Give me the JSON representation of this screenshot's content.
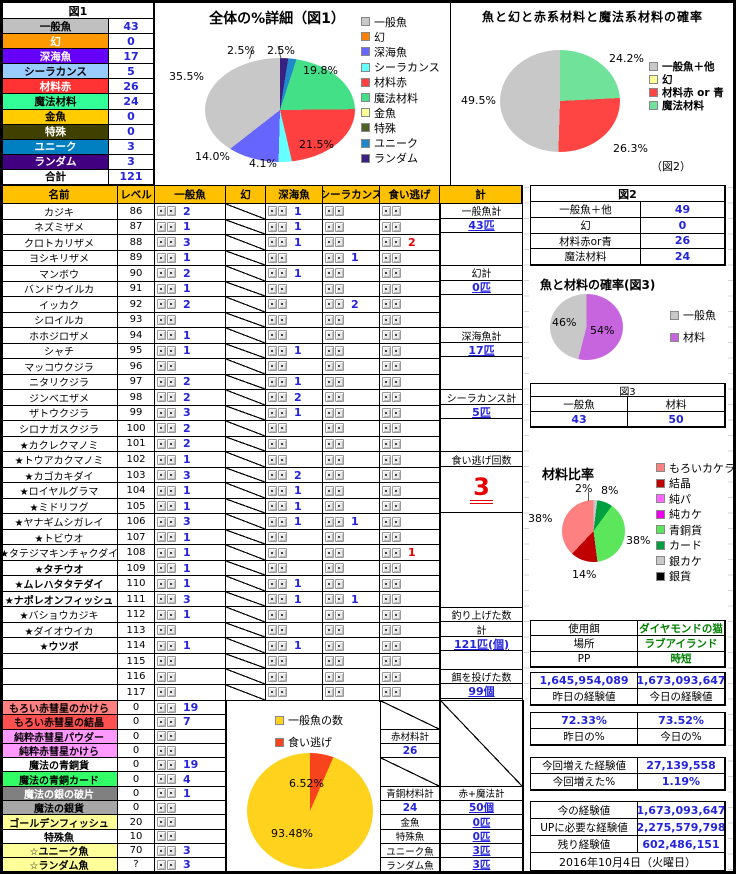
{
  "fig1_table": {
    "title": "図1",
    "rows": [
      [
        "一般魚",
        "43",
        "#C0C0C0",
        "#000000"
      ],
      [
        "幻",
        "0",
        "#FF9900",
        "#FFFFFF"
      ],
      [
        "深海魚",
        "17",
        "#6600FF",
        "#FFFFFF"
      ],
      [
        "シーラカンス",
        "5",
        "#99CCFF",
        "#000000"
      ],
      [
        "材料赤",
        "26",
        "#FF3333",
        "#FFFFFF"
      ],
      [
        "魔法材料",
        "24",
        "#33FF99",
        "#000000"
      ],
      [
        "金魚",
        "0",
        "#FFCC00",
        "#000000"
      ],
      [
        "特殊",
        "0",
        "#404000",
        "#FFFFFF"
      ],
      [
        "ユニーク",
        "3",
        "#0080C0",
        "#FFFFFF"
      ],
      [
        "ランダム",
        "3",
        "#400080",
        "#FFFFFF"
      ]
    ],
    "total_label": "合計",
    "total_value": "121"
  },
  "chart_data": [
    {
      "type": "pie",
      "title": "全体の%詳細（図1）",
      "legend_position": "right",
      "slices": [
        {
          "label": "一般魚",
          "color": "#C8C8C8",
          "value": 35.5,
          "pct": "35.5%"
        },
        {
          "label": "幻",
          "color": "#FF8000",
          "value": 0
        },
        {
          "label": "深海魚",
          "color": "#6666FF",
          "value": 14.0,
          "pct": "14.0%"
        },
        {
          "label": "シーラカンス",
          "color": "#66FFFF",
          "value": 4.1,
          "pct": "4.1%"
        },
        {
          "label": "材料赤",
          "color": "#FF4040",
          "value": 21.5,
          "pct": "21.5%"
        },
        {
          "label": "魔法材料",
          "color": "#44E088",
          "value": 19.8,
          "pct": "19.8%"
        },
        {
          "label": "金魚",
          "color": "#FFFF99",
          "value": 0
        },
        {
          "label": "特殊",
          "color": "#4F6228",
          "value": 0
        },
        {
          "label": "ユニーク",
          "color": "#2288CC",
          "value": 2.5,
          "pct": "2.5%"
        },
        {
          "label": "ランダム",
          "color": "#3A2080",
          "value": 2.5,
          "pct": "2.5%"
        }
      ]
    },
    {
      "type": "pie",
      "title": "魚と幻と赤系材料と魔法系材料の確率",
      "caption": "（図2）",
      "legend_position": "right",
      "slices": [
        {
          "label": "一般魚＋他",
          "color": "#C8C8C8",
          "value": 49.5,
          "pct": "49.5%"
        },
        {
          "label": "幻",
          "color": "#FFFF99",
          "value": 0
        },
        {
          "label": "材料赤 or 青",
          "color": "#FF4444",
          "value": 26.3,
          "pct": "26.3%"
        },
        {
          "label": "魔法材料",
          "color": "#70E29A",
          "value": 24.2,
          "pct": "24.2%"
        }
      ]
    },
    {
      "type": "pie",
      "title": "魚と材料の確率(図3)",
      "legend_position": "right",
      "slices": [
        {
          "label": "一般魚",
          "color": "#C8C8C8",
          "value": 46,
          "pct": "46%"
        },
        {
          "label": "材料",
          "color": "#C665DD",
          "value": 54,
          "pct": "54%"
        }
      ]
    },
    {
      "type": "pie",
      "title": "材料比率",
      "legend_position": "right",
      "slices": [
        {
          "label": "もろいカケラ",
          "color": "#FF8080",
          "value": 38,
          "pct": "38%"
        },
        {
          "label": "結晶",
          "color": "#C00000",
          "value": 14,
          "pct": "14%"
        },
        {
          "label": "純パ",
          "color": "#FF66FF",
          "value": 0
        },
        {
          "label": "純カケ",
          "color": "#EE00EE",
          "value": 0
        },
        {
          "label": "青銅貨",
          "color": "#5CE65C",
          "value": 38,
          "pct": "38%"
        },
        {
          "label": "カード",
          "color": "#00A040",
          "value": 8,
          "pct": "8%"
        },
        {
          "label": "銀カケ",
          "color": "#C8C8C8",
          "value": 2,
          "pct": "2%"
        },
        {
          "label": "銀貨",
          "color": "#000000",
          "value": 0
        }
      ]
    },
    {
      "type": "pie",
      "title": "",
      "legend_position": "top",
      "slices": [
        {
          "label": "一般魚の数",
          "color": "#FFD21E",
          "value": 93.48,
          "pct": "93.48%"
        },
        {
          "label": "食い逃げ",
          "color": "#F8441C",
          "value": 6.52,
          "pct": "6.52%"
        }
      ]
    }
  ],
  "main_table": {
    "headers": [
      "名前",
      "レベル",
      "一般魚",
      "幻",
      "深海魚",
      "シーラカンス",
      "食い逃げ",
      "計"
    ],
    "rows": [
      [
        86,
        "カジキ",
        0,
        "2",
        "1",
        "",
        ""
      ],
      [
        87,
        "ネズミザメ",
        0,
        "1",
        "1",
        "",
        ""
      ],
      [
        88,
        "クロトカリザメ",
        0,
        "3",
        "1",
        "",
        "2"
      ],
      [
        89,
        "ヨシキリザメ",
        0,
        "1",
        "",
        "1",
        ""
      ],
      [
        90,
        "マンボウ",
        0,
        "2",
        "1",
        "",
        ""
      ],
      [
        91,
        "バンドウイルカ",
        0,
        "1",
        "",
        "",
        ""
      ],
      [
        92,
        "イッカク",
        0,
        "2",
        "",
        "2",
        ""
      ],
      [
        93,
        "シロイルカ",
        0,
        "",
        "",
        "",
        ""
      ],
      [
        94,
        "ホホジロザメ",
        0,
        "1",
        "",
        "",
        ""
      ],
      [
        95,
        "シャチ",
        0,
        "1",
        "1",
        "",
        ""
      ],
      [
        96,
        "マッコウクジラ",
        0,
        "",
        "",
        "",
        ""
      ],
      [
        97,
        "ニタリクジラ",
        0,
        "2",
        "1",
        "",
        ""
      ],
      [
        98,
        "ジンベエザメ",
        0,
        "2",
        "2",
        "",
        ""
      ],
      [
        99,
        "ザトウクジラ",
        0,
        "3",
        "1",
        "",
        ""
      ],
      [
        100,
        "シロナガスクジラ",
        0,
        "2",
        "",
        "",
        ""
      ],
      [
        101,
        "★カクレクマノミ",
        0,
        "2",
        "",
        "",
        ""
      ],
      [
        102,
        "★トウアカクマノミ",
        0,
        "1",
        "",
        "",
        ""
      ],
      [
        103,
        "★カゴカキダイ",
        0,
        "3",
        "2",
        "",
        ""
      ],
      [
        104,
        "★ロイヤルグラマ",
        0,
        "1",
        "1",
        "",
        ""
      ],
      [
        105,
        "★ミドリフグ",
        0,
        "1",
        "1",
        "",
        ""
      ],
      [
        106,
        "★ヤナギムシガレイ",
        0,
        "3",
        "1",
        "1",
        ""
      ],
      [
        107,
        "★トビウオ",
        0,
        "1",
        "",
        "",
        ""
      ],
      [
        108,
        "★タテジマキンチャクダイ",
        0,
        "1",
        "",
        "",
        "1"
      ],
      [
        109,
        "★タチウオ",
        1,
        "1",
        "",
        "",
        ""
      ],
      [
        110,
        "★ムレハタタテダイ",
        1,
        "1",
        "1",
        "",
        ""
      ],
      [
        111,
        "★ナポレオンフィッシュ",
        1,
        "3",
        "1",
        "1",
        ""
      ],
      [
        112,
        "★バショウカジキ",
        0,
        "1",
        "",
        "",
        ""
      ],
      [
        113,
        "★ダイオウイカ",
        0,
        "",
        "",
        "",
        ""
      ],
      [
        114,
        "★ウツボ",
        1,
        "1",
        "1",
        "",
        ""
      ],
      [
        115,
        "",
        0,
        "",
        "",
        "",
        ""
      ],
      [
        116,
        "",
        0,
        "",
        "",
        "",
        ""
      ],
      [
        117,
        "",
        0,
        "",
        "",
        "",
        ""
      ]
    ],
    "summary_groups": [
      {
        "row": 1,
        "cells": [
          [
            "一般魚計",
            "lbl"
          ],
          [
            "43匹",
            "val"
          ]
        ]
      },
      {
        "row": 5,
        "cells": [
          [
            "幻計",
            "lbl"
          ],
          [
            "0匹",
            "val"
          ]
        ]
      },
      {
        "row": 9,
        "cells": [
          [
            "深海魚計",
            "lbl"
          ],
          [
            "17匹",
            "val"
          ]
        ]
      },
      {
        "row": 13,
        "cells": [
          [
            "シーラカンス計",
            "lbl"
          ],
          [
            "5匹",
            "val"
          ]
        ]
      },
      {
        "row": 17,
        "cells": [
          [
            "食い逃げ回数",
            "lbl"
          ],
          [
            "3",
            "big"
          ]
        ]
      },
      {
        "row": 27,
        "cells": [
          [
            "釣り上げた数",
            "lbl"
          ],
          [
            "計",
            "lbl"
          ],
          [
            "121匹(個)",
            "val"
          ]
        ]
      },
      {
        "row": 31,
        "cells": [
          [
            "餌を投げた数",
            "lbl"
          ],
          [
            "99個",
            "val"
          ]
        ]
      }
    ]
  },
  "bottom_table": {
    "rows": [
      [
        "もろい赤彗星のかけら",
        "0",
        "19",
        "#FF8080",
        "#000000"
      ],
      [
        "もろい赤彗星の結晶",
        "0",
        "7",
        "#FF5050",
        "#000000"
      ],
      [
        "純粋赤彗星パウダー",
        "0",
        "",
        "#FF99FF",
        "#000000"
      ],
      [
        "純粋赤彗星かけら",
        "0",
        "",
        "#FF99FF",
        "#000000"
      ],
      [
        "魔法の青銅貨",
        "0",
        "19",
        "#FFFFFF",
        "#000000"
      ],
      [
        "魔法の青銅カード",
        "0",
        "4",
        "#33FF66",
        "#000000"
      ],
      [
        "魔法の銀の破片",
        "0",
        "1",
        "#808080",
        "#FFFFFF"
      ],
      [
        "魔法の銀貨",
        "0",
        "",
        "#A6A6A6",
        "#000000"
      ],
      [
        "ゴールデンフィッシュ",
        "20",
        "",
        "#FFFF99",
        "#000000"
      ],
      [
        "特殊魚",
        "10",
        "",
        "#FFFFFF",
        "#000000"
      ],
      [
        "☆ユニーク魚",
        "70",
        "3",
        "#FFFF99",
        "#000000"
      ],
      [
        "☆ランダム魚",
        "?",
        "3",
        "#FFFF99",
        "#000000"
      ]
    ]
  },
  "bottom_sum": {
    "red_label": "赤材料計",
    "red_value": "26",
    "bronze_label": "青銅材料計",
    "bronze_value": "24",
    "fish_labels": [
      "金魚",
      "特殊魚",
      "ユニーク魚",
      "ランダム魚"
    ],
    "total_label": "赤+魔法計",
    "total_value": "50個",
    "fish_counts": [
      "0匹",
      "0匹",
      "3匹",
      "3匹"
    ]
  },
  "fig2_table": {
    "title": "図2",
    "rows": [
      [
        "一般魚＋他",
        "49"
      ],
      [
        "幻",
        "0"
      ],
      [
        "材料赤or青",
        "26"
      ],
      [
        "魔法材料",
        "24"
      ]
    ]
  },
  "fig3_table": {
    "title": "図3",
    "col1": "一般魚",
    "col2": "材料",
    "val1": "43",
    "val2": "50"
  },
  "info_table": {
    "rows": [
      [
        "使用餌",
        "ダイヤモンドの猫"
      ],
      [
        "場所",
        "ラブアイランド"
      ],
      [
        "PP",
        "時短"
      ]
    ]
  },
  "exp": {
    "yesterday_value": "1,645,954,089",
    "today_value": "1,673,093,647",
    "yesterday_label": "昨日の経験値",
    "today_label": "今日の経験値",
    "yesterday_pct": "72.33%",
    "today_pct": "73.52%",
    "yesterday_pct_label": "昨日の%",
    "today_pct_label": "今日の%",
    "gained_label": "今回増えた経験値",
    "gained_value": "27,139,558",
    "gained_pct_label": "今回増えた%",
    "gained_pct": "1.19%",
    "now_label": "今の経験値",
    "now_value": "1,673,093,647",
    "up_label": "UPに必要な経験値",
    "up_value": "2,275,579,798",
    "remain_label": "残り経験値",
    "remain_value": "602,486,151",
    "date": "2016年10月4日（火曜日）"
  }
}
